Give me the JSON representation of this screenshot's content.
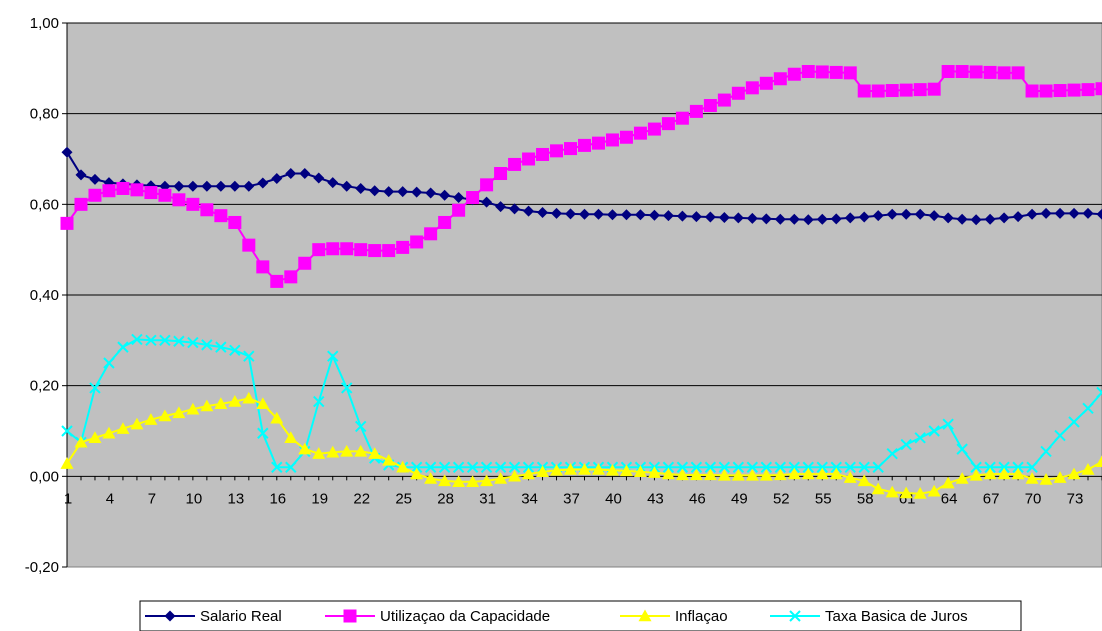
{
  "chart_data": {
    "type": "line",
    "title": "",
    "xlabel": "",
    "ylabel": "",
    "ylim": [
      -0.2,
      1.0
    ],
    "y_ticks": [
      "1,00",
      "0,80",
      "0,60",
      "0,40",
      "0,20",
      "0,00",
      "-0,20"
    ],
    "y_tick_values": [
      1.0,
      0.8,
      0.6,
      0.4,
      0.2,
      0.0,
      -0.2
    ],
    "x_tick_labels": [
      "1",
      "4",
      "7",
      "10",
      "13",
      "16",
      "19",
      "22",
      "25",
      "28",
      "31",
      "34",
      "37",
      "40",
      "43",
      "46",
      "49",
      "52",
      "55",
      "58",
      "61",
      "64",
      "67",
      "70",
      "73"
    ],
    "x_tick_values": [
      1,
      4,
      7,
      10,
      13,
      16,
      19,
      22,
      25,
      28,
      31,
      34,
      37,
      40,
      43,
      46,
      49,
      52,
      55,
      58,
      61,
      64,
      67,
      70,
      73
    ],
    "x": [
      1,
      2,
      3,
      4,
      5,
      6,
      7,
      8,
      9,
      10,
      11,
      12,
      13,
      14,
      15,
      16,
      17,
      18,
      19,
      20,
      21,
      22,
      23,
      24,
      25,
      26,
      27,
      28,
      29,
      30,
      31,
      32,
      33,
      34,
      35,
      36,
      37,
      38,
      39,
      40,
      41,
      42,
      43,
      44,
      45,
      46,
      47,
      48,
      49,
      50,
      51,
      52,
      53,
      54,
      55,
      56,
      57,
      58,
      59,
      60,
      61,
      62,
      63,
      64,
      65,
      66,
      67,
      68,
      69,
      70,
      71,
      72,
      73,
      74,
      75
    ],
    "grid": "horizontal",
    "legend_position": "bottom",
    "plot_background": "#c0c0c0",
    "series": [
      {
        "name": "Salario Real",
        "color": "#000080",
        "marker": "diamond",
        "values": [
          0.715,
          0.665,
          0.655,
          0.648,
          0.645,
          0.643,
          0.641,
          0.64,
          0.64,
          0.64,
          0.64,
          0.64,
          0.64,
          0.64,
          0.647,
          0.657,
          0.668,
          0.668,
          0.658,
          0.648,
          0.64,
          0.635,
          0.63,
          0.628,
          0.628,
          0.627,
          0.625,
          0.62,
          0.615,
          0.61,
          0.605,
          0.595,
          0.59,
          0.585,
          0.582,
          0.58,
          0.579,
          0.578,
          0.578,
          0.577,
          0.577,
          0.577,
          0.576,
          0.575,
          0.574,
          0.573,
          0.572,
          0.571,
          0.57,
          0.569,
          0.568,
          0.567,
          0.567,
          0.566,
          0.567,
          0.568,
          0.57,
          0.572,
          0.575,
          0.578,
          0.578,
          0.578,
          0.575,
          0.57,
          0.567,
          0.566,
          0.567,
          0.57,
          0.573,
          0.578,
          0.58,
          0.58,
          0.58,
          0.58,
          0.578
        ]
      },
      {
        "name": "Utilizaçao da Capacidade",
        "color": "#ff00ff",
        "marker": "square",
        "values": [
          0.558,
          0.6,
          0.62,
          0.63,
          0.635,
          0.632,
          0.626,
          0.62,
          0.61,
          0.6,
          0.588,
          0.575,
          0.56,
          0.51,
          0.462,
          0.43,
          0.44,
          0.47,
          0.5,
          0.502,
          0.502,
          0.5,
          0.498,
          0.498,
          0.505,
          0.517,
          0.535,
          0.56,
          0.587,
          0.615,
          0.643,
          0.668,
          0.688,
          0.7,
          0.71,
          0.718,
          0.723,
          0.73,
          0.735,
          0.742,
          0.748,
          0.757,
          0.766,
          0.778,
          0.79,
          0.805,
          0.818,
          0.83,
          0.845,
          0.857,
          0.867,
          0.877,
          0.887,
          0.893,
          0.892,
          0.891,
          0.89,
          0.85,
          0.85,
          0.851,
          0.852,
          0.853,
          0.854,
          0.893,
          0.893,
          0.892,
          0.891,
          0.89,
          0.89,
          0.85,
          0.85,
          0.851,
          0.852,
          0.853,
          0.855
        ]
      },
      {
        "name": "Inflaçao",
        "color": "#ffff00",
        "marker": "triangle",
        "values": [
          0.028,
          0.075,
          0.085,
          0.095,
          0.105,
          0.115,
          0.125,
          0.133,
          0.14,
          0.148,
          0.155,
          0.16,
          0.165,
          0.172,
          0.16,
          0.128,
          0.085,
          0.06,
          0.05,
          0.053,
          0.055,
          0.055,
          0.05,
          0.035,
          0.02,
          0.005,
          -0.005,
          -0.01,
          -0.012,
          -0.012,
          -0.01,
          -0.005,
          0.0,
          0.005,
          0.01,
          0.013,
          0.015,
          0.015,
          0.015,
          0.013,
          0.012,
          0.01,
          0.008,
          0.005,
          0.003,
          0.003,
          0.003,
          0.002,
          0.002,
          0.002,
          0.002,
          0.003,
          0.005,
          0.005,
          0.005,
          0.005,
          -0.003,
          -0.01,
          -0.028,
          -0.035,
          -0.037,
          -0.038,
          -0.033,
          -0.015,
          -0.005,
          0.002,
          0.005,
          0.005,
          0.005,
          -0.005,
          -0.007,
          -0.003,
          0.005,
          0.015,
          0.032
        ]
      },
      {
        "name": "Taxa Basica de Juros",
        "color": "#00ffff",
        "marker": "x",
        "values": [
          0.1,
          0.075,
          0.195,
          0.25,
          0.285,
          0.302,
          0.3,
          0.3,
          0.298,
          0.295,
          0.29,
          0.285,
          0.278,
          0.265,
          0.095,
          0.02,
          0.02,
          0.055,
          0.165,
          0.265,
          0.195,
          0.11,
          0.04,
          0.025,
          0.02,
          0.02,
          0.02,
          0.02,
          0.02,
          0.02,
          0.02,
          0.02,
          0.02,
          0.02,
          0.02,
          0.02,
          0.02,
          0.02,
          0.02,
          0.02,
          0.02,
          0.02,
          0.02,
          0.02,
          0.02,
          0.02,
          0.02,
          0.02,
          0.02,
          0.02,
          0.02,
          0.02,
          0.02,
          0.02,
          0.02,
          0.02,
          0.02,
          0.02,
          0.02,
          0.05,
          0.07,
          0.085,
          0.1,
          0.115,
          0.06,
          0.02,
          0.02,
          0.02,
          0.02,
          0.02,
          0.055,
          0.09,
          0.12,
          0.15,
          0.185
        ]
      }
    ]
  }
}
